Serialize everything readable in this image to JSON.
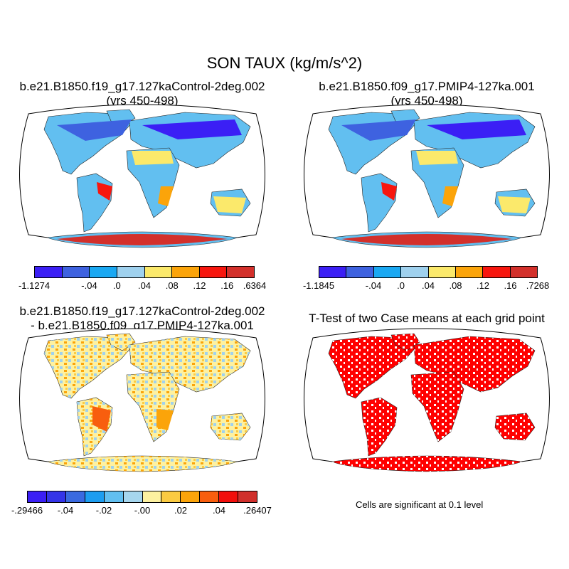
{
  "title": "SON TAUX (kg/m/s^2)",
  "panels": {
    "top_left": {
      "title_line1": "b.e21.B1850.f19_g17.127kaControl-2deg.002",
      "title_line2": "(yrs 450-498)",
      "colorbar": {
        "colors": [
          "#3b1ff5",
          "#3e62e0",
          "#1aa8f2",
          "#9fd1ee",
          "#fbe96b",
          "#fba40a",
          "#f7160e",
          "#d3302b"
        ],
        "labels": [
          "-1.1274",
          "-.04",
          ".0",
          ".04",
          ".08",
          ".12",
          ".16",
          ".6364"
        ]
      }
    },
    "top_right": {
      "title_line1": "b.e21.B1850.f09_g17.PMIP4-127ka.001",
      "title_line2": "(yrs 450-498)",
      "colorbar": {
        "colors": [
          "#3b1ff5",
          "#3e62e0",
          "#1aa8f2",
          "#9fd1ee",
          "#fbe96b",
          "#fba40a",
          "#f7160e",
          "#d3302b"
        ],
        "labels": [
          "-1.1845",
          "-.04",
          ".0",
          ".04",
          ".08",
          ".12",
          ".16",
          ".7268"
        ]
      }
    },
    "bottom_left": {
      "title_line1": "b.e21.B1850.f19_g17.127kaControl-2deg.002",
      "title_line2": "- b.e21.B1850.f09_g17.PMIP4-127ka.001",
      "colorbar": {
        "colors": [
          "#3b1ff5",
          "#3434e8",
          "#3a6ae0",
          "#1d9df0",
          "#62bff0",
          "#a6d6ee",
          "#fdf1a0",
          "#fbcb42",
          "#fba40a",
          "#f85e0e",
          "#f20f0c",
          "#d0302c"
        ],
        "labels": [
          "-.29466",
          "-.04",
          "-.02",
          "-.00",
          ".02",
          ".04",
          ".26407"
        ]
      }
    },
    "bottom_right": {
      "title": "T-Test of two Case means at each grid point",
      "note": "Cells are significant at 0.1 level",
      "fill_color": "#ff0000"
    }
  }
}
